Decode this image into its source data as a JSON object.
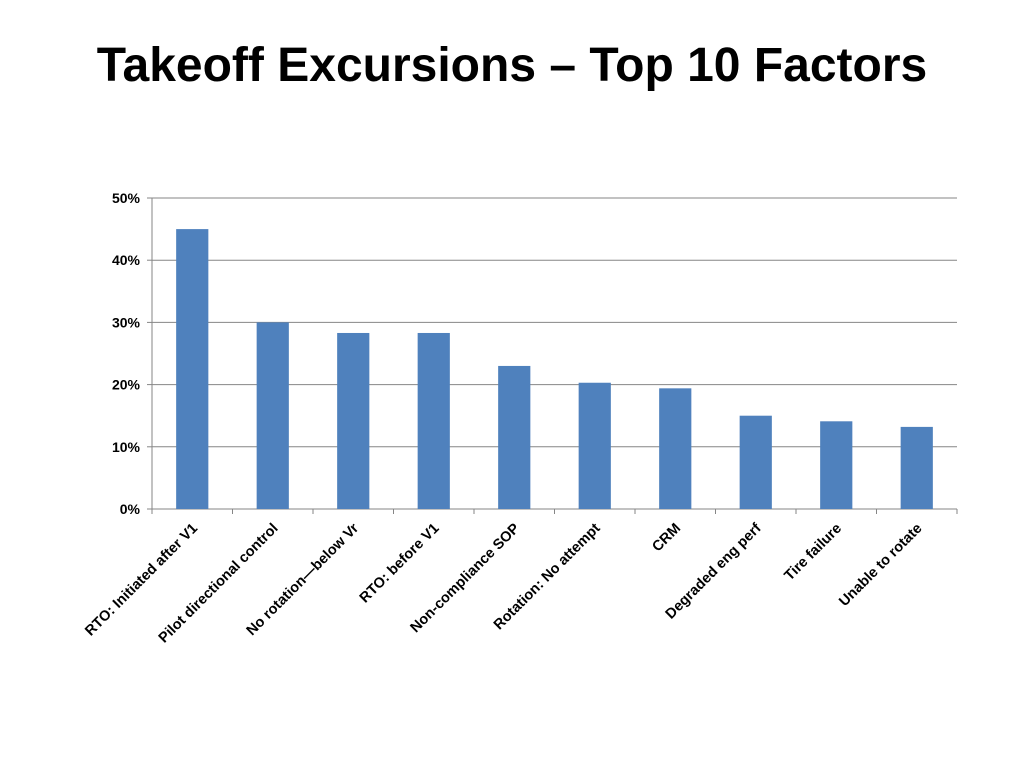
{
  "slide": {
    "title": "Takeoff Excursions – Top 10 Factors"
  },
  "colors": {
    "bar": "#4f81bd",
    "gridline": "#868686",
    "axis": "#868686"
  },
  "chart_data": {
    "type": "bar",
    "title": "",
    "xlabel": "",
    "ylabel": "",
    "categories": [
      "RTO: Initiated after V1",
      "Pilot directional control",
      "No rotation—below Vr",
      "RTO: before V1",
      "Non-compliance SOP",
      "Rotation: No attempt",
      "CRM",
      "Degraded eng perf",
      "Tire failure",
      "Unable to rotate"
    ],
    "values": [
      45,
      30,
      28.3,
      28.3,
      23,
      20.3,
      19.4,
      15,
      14.1,
      13.2
    ],
    "value_unit": "%",
    "ylim": [
      0,
      50
    ],
    "yticks": [
      0,
      10,
      20,
      30,
      40,
      50
    ],
    "ytick_labels": [
      "0%",
      "10%",
      "20%",
      "30%",
      "40%",
      "50%"
    ],
    "grid": true,
    "legend": "none"
  }
}
